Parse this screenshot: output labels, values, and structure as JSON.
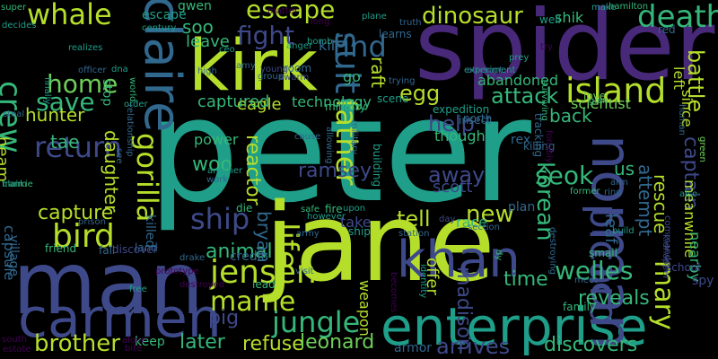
{
  "palette": {
    "background": "#000000",
    "lime": "#b5de2b",
    "green": "#6ece58",
    "teal": "#1f9e89",
    "blue": "#31688e",
    "indigo": "#482878",
    "purple": "#440154",
    "aqua": "#35b779",
    "slate": "#3e4989",
    "cyan": "#26828e"
  },
  "words": [
    "peter",
    "jin",
    "jane",
    "spider",
    "kirk",
    "man",
    "carmen",
    "enterprise",
    "khan",
    "jungle",
    "claire",
    "norman",
    "picard",
    "island",
    "jensen",
    "mame",
    "life",
    "father",
    "suit",
    "gorilla",
    "escape",
    "find",
    "fight",
    "death",
    "dinosaur",
    "whale",
    "home",
    "crew",
    "save",
    "return",
    "bird",
    "ship",
    "brother",
    "refuse",
    "leonard",
    "arrives",
    "discovers",
    "welles",
    "mary",
    "later",
    "pig",
    "animal",
    "attack",
    "help",
    "egg",
    "raft",
    "seok",
    "korean",
    "time",
    "madison",
    "offer",
    "reveals",
    "battle",
    "captain",
    "new",
    "tell",
    "away",
    "scott",
    "ramsey",
    "bryan",
    "reactor",
    "capture",
    "capsule",
    "woo",
    "power",
    "eagle",
    "captured",
    "technology",
    "hunter",
    "daughter",
    "tae",
    "beam",
    "leave",
    "soo",
    "kill",
    "go",
    "abandoned",
    "back",
    "scientist",
    "us",
    "leaf",
    "rescue",
    "attempt",
    "since",
    "left",
    "meanwhile",
    "nearby",
    "keep",
    "armor",
    "weapon",
    "though",
    "rex",
    "killing",
    "plan",
    "take",
    "race",
    "credit",
    "killed",
    "shik",
    "gwen",
    "stop",
    "village",
    "land",
    "prison",
    "friend",
    "fall",
    "discover",
    "drake",
    "die",
    "lead",
    "destroyed",
    "spy",
    "school",
    "family",
    "small",
    "high",
    "room",
    "north",
    "military",
    "world",
    "escape",
    "order",
    "young",
    "free",
    "swarm",
    "allowing",
    "building",
    "safe",
    "fire",
    "however",
    "upon",
    "day",
    "station",
    "meet",
    "section",
    "build",
    "ring",
    "arm",
    "former",
    "commander",
    "kidnapper",
    "green",
    "human",
    "surviving",
    "tracking",
    "glen",
    "expedition",
    "insect",
    "learns",
    "love",
    "truth",
    "plane",
    "make",
    "hamilton",
    "red",
    "well",
    "try",
    "prey",
    "scene",
    "trying",
    "experiment",
    "bomb",
    "ceo",
    "amy",
    "group",
    "anger",
    "long",
    "matter",
    "century",
    "dna",
    "officer",
    "realizes",
    "finally",
    "decides",
    "super",
    "steal",
    "frankie",
    "claim",
    "south",
    "estate",
    "ship",
    "cause",
    "prototype",
    "visit",
    "becomes",
    "identity",
    "destroying",
    "dy",
    "military",
    "alone",
    "also",
    "another",
    "work",
    "army",
    "see",
    "relationship",
    "forcibly",
    "bite",
    "attempt"
  ]
}
